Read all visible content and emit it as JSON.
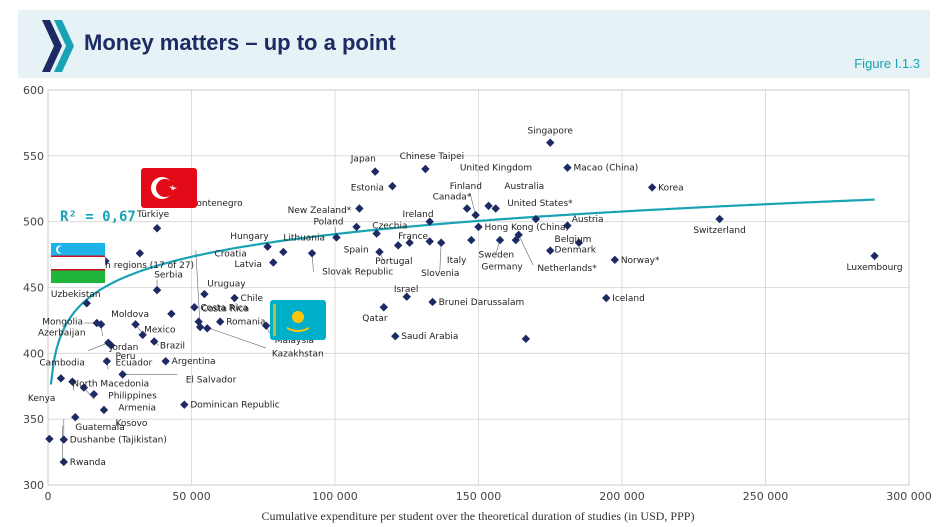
{
  "header": {
    "title": "Money matters – up to a point",
    "figure_number": "Figure I.1.3"
  },
  "colors": {
    "banner_bg": "#e6f2f6",
    "title": "#1d2a63",
    "accent": "#17a3b4",
    "marker": "#1d2a63",
    "grid": "#cfcfcf"
  },
  "chart_data": {
    "type": "scatter",
    "xlabel": "Cumulative expenditure per student over the theoretical duration of studies (in USD, PPP)",
    "xlim": [
      0,
      300000
    ],
    "ylim": [
      300,
      600
    ],
    "x_ticks": [
      0,
      50000,
      100000,
      150000,
      200000,
      250000,
      300000
    ],
    "x_tick_labels": [
      "0",
      "50 000",
      "100 000",
      "150 000",
      "200 000",
      "250 000",
      "300 000"
    ],
    "y_ticks": [
      300,
      350,
      400,
      450,
      500,
      550,
      600
    ],
    "y_tick_labels": [
      "300",
      "350",
      "400",
      "450",
      "500",
      "550",
      "600"
    ],
    "grid": true,
    "annotation": "R² = 0,67",
    "trendline": {
      "type": "logarithmic",
      "color": "#17a3b4"
    },
    "flag_icons": [
      "turkiye-flag-icon",
      "uzbekistan-flag-icon",
      "kazakhstan-flag-icon"
    ],
    "points": [
      {
        "x": 8600,
        "y": 362,
        "label": "",
        "leader": true
      },
      {
        "x": 16400,
        "y": 360,
        "label": "",
        "leader": true
      },
      {
        "x": 15500,
        "y": 372,
        "label": "",
        "leader": true
      },
      {
        "x": 20000,
        "y": 394,
        "label": "",
        "leader": true
      },
      {
        "x": 30000,
        "y": 393,
        "label": "",
        "leader": true
      },
      {
        "x": 28000,
        "y": 414,
        "label": "",
        "leader": true
      },
      {
        "x": 25600,
        "y": 422,
        "label": "",
        "leader": true
      },
      {
        "x": 19500,
        "y": 408,
        "label": "",
        "leader": true
      },
      {
        "x": 18000,
        "y": 405,
        "label": "",
        "leader": true
      },
      {
        "x": 5000,
        "y": 318,
        "label": "",
        "leader": true
      },
      {
        "x": 0,
        "y": 335,
        "label": "",
        "leader": true
      },
      {
        "x": 14000,
        "y": 438,
        "label": "",
        "leader": true
      },
      {
        "x": 27000,
        "y": 470,
        "label": "",
        "leader": true
      },
      {
        "x": 38000,
        "y": 452,
        "label": "",
        "leader": true
      },
      {
        "x": 51400,
        "y": 445,
        "label": "",
        "leader": true
      },
      {
        "x": 57800,
        "y": 433,
        "label": "",
        "leader": true
      },
      {
        "x": 56000,
        "y": 410,
        "label": "",
        "leader": true
      },
      {
        "x": 78000,
        "y": 435,
        "label": "",
        "leader": true
      },
      {
        "x": 5000,
        "y": 382,
        "label": "",
        "leader": true
      },
      {
        "x": 9000,
        "y": 366,
        "label": "",
        "leader": true
      },
      {
        "x": 1000,
        "y": 355,
        "label": "",
        "leader": true
      },
      {
        "x": 13500,
        "y": 350,
        "label": "",
        "leader": true
      },
      {
        "x": 1200,
        "y": 320,
        "label": "",
        "leader": true
      },
      {
        "x": 10000,
        "y": 480,
        "label": "",
        "leader": true
      },
      {
        "x": 25000,
        "y": 402,
        "label": "",
        "leader": true
      },
      {
        "x": 29000,
        "y": 376,
        "label": "",
        "leader": true
      },
      {
        "x": 50000,
        "y": 420,
        "label": "",
        "leader": true
      },
      {
        "x": 55000,
        "y": 512,
        "label": "",
        "leader": true
      },
      {
        "x": 60000,
        "y": 468,
        "label": "",
        "leader": true
      },
      {
        "x": 95000,
        "y": 466,
        "label": "",
        "leader": true
      },
      {
        "x": 140000,
        "y": 465,
        "label": "",
        "leader": true
      },
      {
        "x": 145000,
        "y": 470,
        "label": "",
        "leader": true
      },
      {
        "x": 160000,
        "y": 472,
        "label": "",
        "leader": true
      },
      {
        "x": 165000,
        "y": 477,
        "label": "",
        "leader": true
      },
      {
        "x": 5500,
        "y": 317.5,
        "label": "Rwanda",
        "pos": "right"
      },
      {
        "x": 500,
        "y": 335,
        "label": "Kenya",
        "pos": "none"
      },
      {
        "x": 5500,
        "y": 334.5,
        "label": "Dushanbe (Tajikistan)",
        "pos": "right"
      },
      {
        "x": 9500,
        "y": 351.5,
        "label": "Guatemala",
        "pos": "none"
      },
      {
        "x": 19500,
        "y": 357,
        "label": "Kosovo",
        "pos": "none"
      },
      {
        "x": 16000,
        "y": 369,
        "label": "Armenia",
        "pos": "none"
      },
      {
        "x": 12500,
        "y": 374,
        "label": "Philippines",
        "pos": "none"
      },
      {
        "x": 8500,
        "y": 378.5,
        "label": "North Macedonia",
        "pos": "none"
      },
      {
        "x": 4500,
        "y": 381,
        "label": "Cambodia",
        "pos": "none"
      },
      {
        "x": 26000,
        "y": 384,
        "label": "El Salvador",
        "pos": "none"
      },
      {
        "x": 20500,
        "y": 394,
        "label": "Ecuador",
        "pos": "none"
      },
      {
        "x": 41000,
        "y": 394,
        "label": "Argentina",
        "pos": "right"
      },
      {
        "x": 22000,
        "y": 406,
        "label": "Peru",
        "pos": "none"
      },
      {
        "x": 21000,
        "y": 408,
        "label": "Jordan",
        "pos": "none"
      },
      {
        "x": 37000,
        "y": 409,
        "label": "Brazil",
        "pos": "none"
      },
      {
        "x": 33000,
        "y": 414,
        "label": "Mexico",
        "pos": "none"
      },
      {
        "x": 30500,
        "y": 422,
        "label": "Moldova",
        "pos": "none"
      },
      {
        "x": 17000,
        "y": 423,
        "label": "Mongolia",
        "pos": "none"
      },
      {
        "x": 18500,
        "y": 422,
        "label": "Azerbaijan",
        "pos": "none"
      },
      {
        "x": 13500,
        "y": 438,
        "label": "Uzbekistan",
        "pos": "none"
      },
      {
        "x": 43000,
        "y": 430,
        "label": "",
        "pos": "none"
      },
      {
        "x": 38000,
        "y": 448,
        "label": "Serbia",
        "pos": "none"
      },
      {
        "x": 38000,
        "y": 495,
        "label": "Türkiye",
        "pos": "none"
      },
      {
        "x": 54500,
        "y": 445,
        "label": "Uruguay",
        "pos": "none"
      },
      {
        "x": 51000,
        "y": 435,
        "label": "Costa Rica",
        "pos": "right"
      },
      {
        "x": 65000,
        "y": 442,
        "label": "Chile",
        "pos": "right"
      },
      {
        "x": 60000,
        "y": 424,
        "label": "Romania",
        "pos": "right"
      },
      {
        "x": 53000,
        "y": 420,
        "label": "",
        "pos": "none"
      },
      {
        "x": 52500,
        "y": 424,
        "label": "",
        "pos": "none"
      },
      {
        "x": 55500,
        "y": 419,
        "label": "",
        "pos": "none"
      },
      {
        "x": 76000,
        "y": 421,
        "label": "Malaysia",
        "pos": "none"
      },
      {
        "x": 47500,
        "y": 361,
        "label": "Dominican Republic",
        "pos": "right"
      },
      {
        "x": 76500,
        "y": 481,
        "label": "Hungary",
        "pos": "none"
      },
      {
        "x": 82000,
        "y": 477,
        "label": "Croatia",
        "pos": "none"
      },
      {
        "x": 78500,
        "y": 469,
        "label": "Latvia",
        "pos": "none"
      },
      {
        "x": 92000,
        "y": 476,
        "label": "Lithuania",
        "pos": "none"
      },
      {
        "x": 100500,
        "y": 488,
        "label": "Slovak Republic",
        "pos": "none"
      },
      {
        "x": 107500,
        "y": 496,
        "label": "Poland",
        "pos": "none"
      },
      {
        "x": 108500,
        "y": 510,
        "label": "New Zealand*",
        "pos": "none"
      },
      {
        "x": 114000,
        "y": 538,
        "label": "Japan",
        "pos": "none"
      },
      {
        "x": 114500,
        "y": 491,
        "label": "Czechia",
        "pos": "none"
      },
      {
        "x": 115500,
        "y": 477,
        "label": "Spain",
        "pos": "none"
      },
      {
        "x": 120000,
        "y": 527,
        "label": "Estonia",
        "pos": "none"
      },
      {
        "x": 117000,
        "y": 435,
        "label": "Qatar",
        "pos": "none"
      },
      {
        "x": 121000,
        "y": 413,
        "label": "Saudi Arabia",
        "pos": "right"
      },
      {
        "x": 125000,
        "y": 443,
        "label": "Israel",
        "pos": "none"
      },
      {
        "x": 122000,
        "y": 482,
        "label": "Portugal",
        "pos": "none"
      },
      {
        "x": 126000,
        "y": 484,
        "label": "France",
        "pos": "none"
      },
      {
        "x": 131500,
        "y": 540,
        "label": "Chinese Taipei",
        "pos": "none"
      },
      {
        "x": 133000,
        "y": 500,
        "label": "Ireland",
        "pos": "none"
      },
      {
        "x": 133000,
        "y": 485,
        "label": "",
        "pos": "none"
      },
      {
        "x": 134000,
        "y": 439,
        "label": "Brunei Darussalam",
        "pos": "right"
      },
      {
        "x": 137000,
        "y": 484,
        "label": "Slovenia",
        "pos": "none"
      },
      {
        "x": 146000,
        "y": 510,
        "label": "Canada*",
        "pos": "none"
      },
      {
        "x": 147500,
        "y": 486,
        "label": "Italy",
        "pos": "none"
      },
      {
        "x": 149000,
        "y": 505,
        "label": "Finland",
        "pos": "none"
      },
      {
        "x": 150000,
        "y": 496,
        "label": "Hong Kong (China)",
        "pos": "right"
      },
      {
        "x": 153500,
        "y": 512,
        "label": "United Kingdom",
        "pos": "none"
      },
      {
        "x": 156000,
        "y": 510,
        "label": "Australia",
        "pos": "none"
      },
      {
        "x": 157500,
        "y": 486,
        "label": "Sweden",
        "pos": "none"
      },
      {
        "x": 163000,
        "y": 486,
        "label": "Germany",
        "pos": "none"
      },
      {
        "x": 166500,
        "y": 411,
        "label": "",
        "pos": "none"
      },
      {
        "x": 170000,
        "y": 502,
        "label": "United States*",
        "pos": "none"
      },
      {
        "x": 175000,
        "y": 560,
        "label": "Singapore",
        "pos": "above"
      },
      {
        "x": 175000,
        "y": 478,
        "label": "Belgium",
        "pos": "none"
      },
      {
        "x": 181000,
        "y": 497,
        "label": "Austria",
        "pos": "none"
      },
      {
        "x": 181000,
        "y": 541,
        "label": "Macao (China)",
        "pos": "right"
      },
      {
        "x": 185000,
        "y": 484,
        "label": "Denmark",
        "pos": "none"
      },
      {
        "x": 164000,
        "y": 490,
        "label": "Netherlands*",
        "pos": "none"
      },
      {
        "x": 194500,
        "y": 442,
        "label": "Iceland",
        "pos": "right"
      },
      {
        "x": 197500,
        "y": 471,
        "label": "Norway*",
        "pos": "right"
      },
      {
        "x": 210500,
        "y": 526,
        "label": "Korea",
        "pos": "right"
      },
      {
        "x": 234000,
        "y": 502,
        "label": "Switzerland",
        "pos": "below"
      },
      {
        "x": 288000,
        "y": 474,
        "label": "Luxembourg",
        "pos": "below"
      },
      {
        "x": 32000,
        "y": 476,
        "label": "Montenegro",
        "pos": "none"
      },
      {
        "x": 15000,
        "y": 470,
        "label": "Kazakhstan",
        "pos": "none"
      },
      {
        "x": 20000,
        "y": 470,
        "label": "Kazakhstan regions (17 of 27)",
        "pos": "none"
      }
    ],
    "free_labels": [
      {
        "text": "Kazakhstan",
        "x": 78000,
        "y": 400
      },
      {
        "text": "Montenegro",
        "x": 49000,
        "y": 514
      },
      {
        "text": "an regions (17 of 27)",
        "x": 18000,
        "y": 467
      },
      {
        "text": "Türkiye",
        "x": 31000,
        "y": 506
      },
      {
        "text": "Serbia",
        "x": 37000,
        "y": 460
      },
      {
        "text": "Uzbekistan",
        "x": 1000,
        "y": 445
      },
      {
        "text": "Uruguay",
        "x": 55500,
        "y": 453
      },
      {
        "text": "Costa Rica",
        "x": 53500,
        "y": 434
      },
      {
        "text": "Moldova",
        "x": 22000,
        "y": 430
      },
      {
        "text": "Mongolia",
        "x": -2000,
        "y": 424
      },
      {
        "text": "Azerbaijan",
        "x": -3500,
        "y": 416
      },
      {
        "text": "Mexico",
        "x": 33500,
        "y": 418
      },
      {
        "text": "Jordan",
        "x": 21500,
        "y": 405
      },
      {
        "text": "Peru",
        "x": 23500,
        "y": 398
      },
      {
        "text": "Brazil",
        "x": 39000,
        "y": 406
      },
      {
        "text": "Ecuador",
        "x": 23500,
        "y": 393
      },
      {
        "text": "Cambodia",
        "x": -3000,
        "y": 393
      },
      {
        "text": "North Macedonia",
        "x": 8500,
        "y": 377
      },
      {
        "text": "El Salvador",
        "x": 48000,
        "y": 380
      },
      {
        "text": "Philippines",
        "x": 21000,
        "y": 368
      },
      {
        "text": "Kenya",
        "x": -7000,
        "y": 366
      },
      {
        "text": "Armenia",
        "x": 24500,
        "y": 359
      },
      {
        "text": "Kosovo",
        "x": 23500,
        "y": 347
      },
      {
        "text": "Guatemala",
        "x": 9500,
        "y": 344
      },
      {
        "text": "Hungary",
        "x": 63500,
        "y": 489
      },
      {
        "text": "Croatia",
        "x": 58000,
        "y": 476
      },
      {
        "text": "Latvia",
        "x": 65000,
        "y": 468
      },
      {
        "text": "Lithuania",
        "x": 82000,
        "y": 488
      },
      {
        "text": "Slovak Republic",
        "x": 95500,
        "y": 462
      },
      {
        "text": "Poland",
        "x": 92500,
        "y": 500
      },
      {
        "text": "New Zealand*",
        "x": 83500,
        "y": 509
      },
      {
        "text": "Japan",
        "x": 105500,
        "y": 548
      },
      {
        "text": "Czechia",
        "x": 113000,
        "y": 497
      },
      {
        "text": "Spain",
        "x": 103000,
        "y": 479
      },
      {
        "text": "Estonia",
        "x": 105500,
        "y": 526
      },
      {
        "text": "Qatar",
        "x": 109500,
        "y": 427
      },
      {
        "text": "Israel",
        "x": 120500,
        "y": 449
      },
      {
        "text": "Portugal",
        "x": 114000,
        "y": 470
      },
      {
        "text": "France",
        "x": 122000,
        "y": 489
      },
      {
        "text": "Chinese Taipei",
        "x": 122500,
        "y": 550
      },
      {
        "text": "Ireland",
        "x": 123500,
        "y": 506
      },
      {
        "text": "Slovenia",
        "x": 130000,
        "y": 461
      },
      {
        "text": "Canada*",
        "x": 134000,
        "y": 519
      },
      {
        "text": "Italy",
        "x": 139000,
        "y": 471
      },
      {
        "text": "Finland",
        "x": 140000,
        "y": 527
      },
      {
        "text": "United Kingdom",
        "x": 143500,
        "y": 541
      },
      {
        "text": "Australia",
        "x": 159000,
        "y": 527
      },
      {
        "text": "United States*",
        "x": 160000,
        "y": 514
      },
      {
        "text": "Sweden",
        "x": 150000,
        "y": 475
      },
      {
        "text": "Germany",
        "x": 151000,
        "y": 466
      },
      {
        "text": "Belgium",
        "x": 176500,
        "y": 487
      },
      {
        "text": "Denmark",
        "x": 176500,
        "y": 479
      },
      {
        "text": "Netherlands*",
        "x": 170500,
        "y": 465
      },
      {
        "text": "Austria",
        "x": 182500,
        "y": 502
      },
      {
        "text": "Malaysia",
        "x": 79000,
        "y": 410
      },
      {
        "text": "Montenegro2",
        "x": 0,
        "y": 0
      }
    ]
  }
}
